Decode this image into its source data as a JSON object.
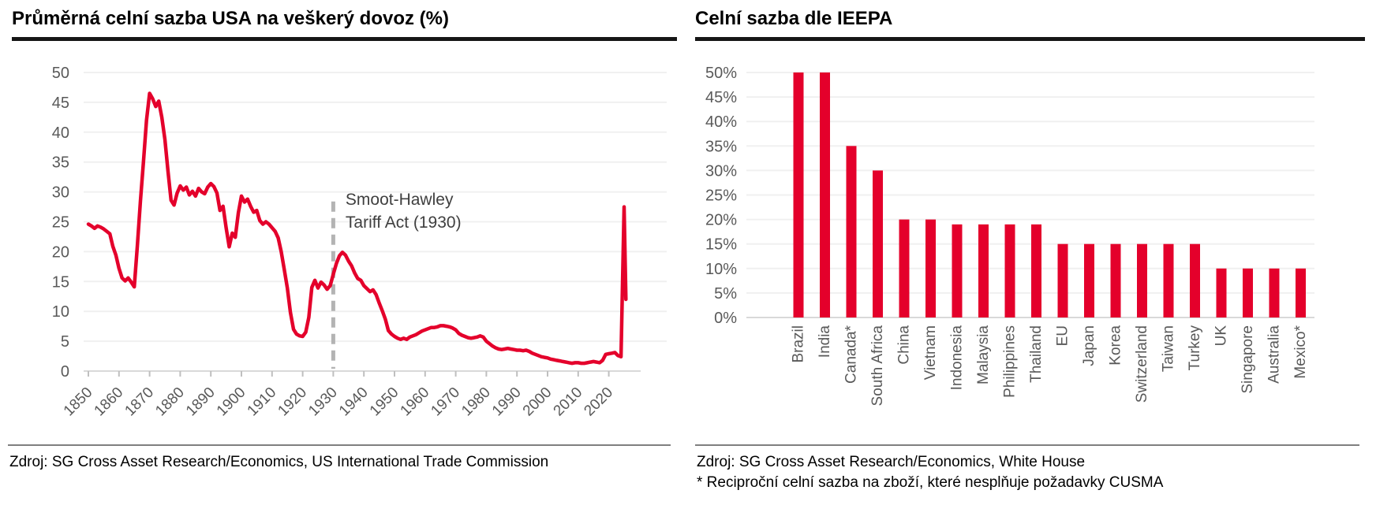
{
  "colors": {
    "accent_red": "#e4002b",
    "axis_text": "#595959",
    "gridline": "#f0f0f0",
    "axis_line": "#d9d9d9",
    "tick": "#bfbfbf",
    "dashed_line": "#b3b3b3",
    "annotation_text": "#3f3f3f",
    "title_rule": "#161616",
    "source_rule": "#7f7f7f"
  },
  "left_panel": {
    "title": "Průměrná celní sazba USA na veškerý dovoz (%)",
    "source": "Zdroj: SG Cross Asset Research/Economics, US International Trade Commission"
  },
  "right_panel": {
    "title": "Celní sazba dle IEEPA",
    "source": "Zdroj: SG Cross Asset Research/Economics, White House",
    "footnote": "* Reciproční celní sazba na zboží, které nesplňuje požadavky CUSMA"
  },
  "chart_data": [
    {
      "type": "line",
      "title": "Průměrná celní sazba USA na veškerý dovoz (%)",
      "xlabel": "",
      "ylabel": "",
      "xlim": [
        1848,
        2027
      ],
      "ylim": [
        0,
        50
      ],
      "yticks": [
        0,
        5,
        10,
        15,
        20,
        25,
        30,
        35,
        40,
        45,
        50
      ],
      "xticks": [
        1850,
        1860,
        1870,
        1880,
        1890,
        1900,
        1910,
        1920,
        1930,
        1940,
        1950,
        1960,
        1970,
        1980,
        1990,
        2000,
        2010,
        2020
      ],
      "grid": true,
      "legend": "none",
      "annotation": {
        "lines": [
          "Smoot-Hawley",
          "Tariff Act (1930)"
        ],
        "at_year": 1934,
        "at_value": 29
      },
      "vline": {
        "at_year": 1930,
        "style": "dashed",
        "value_from": 0.4,
        "value_to": 28.4
      },
      "series": [
        {
          "name": "Průměrná celní sazba USA (%)",
          "points": [
            [
              1850,
              24.6
            ],
            [
              1851,
              24.3
            ],
            [
              1852,
              23.9
            ],
            [
              1853,
              24.3
            ],
            [
              1854,
              24.1
            ],
            [
              1855,
              23.8
            ],
            [
              1856,
              23.4
            ],
            [
              1857,
              23.0
            ],
            [
              1858,
              20.9
            ],
            [
              1859,
              19.4
            ],
            [
              1860,
              17.2
            ],
            [
              1861,
              15.6
            ],
            [
              1862,
              15.1
            ],
            [
              1863,
              15.6
            ],
            [
              1864,
              14.9
            ],
            [
              1865,
              14.1
            ],
            [
              1866,
              21.0
            ],
            [
              1867,
              28.5
            ],
            [
              1868,
              35.0
            ],
            [
              1869,
              42.0
            ],
            [
              1870,
              46.5
            ],
            [
              1871,
              45.6
            ],
            [
              1872,
              44.3
            ],
            [
              1873,
              45.2
            ],
            [
              1874,
              42.5
            ],
            [
              1875,
              38.8
            ],
            [
              1876,
              33.5
            ],
            [
              1877,
              28.6
            ],
            [
              1878,
              27.8
            ],
            [
              1879,
              29.8
            ],
            [
              1880,
              31.0
            ],
            [
              1881,
              30.3
            ],
            [
              1882,
              30.8
            ],
            [
              1883,
              29.5
            ],
            [
              1884,
              30.1
            ],
            [
              1885,
              29.3
            ],
            [
              1886,
              30.6
            ],
            [
              1887,
              30.0
            ],
            [
              1888,
              29.7
            ],
            [
              1889,
              30.8
            ],
            [
              1890,
              31.4
            ],
            [
              1891,
              30.9
            ],
            [
              1892,
              29.8
            ],
            [
              1893,
              26.9
            ],
            [
              1894,
              27.6
            ],
            [
              1895,
              24.0
            ],
            [
              1896,
              20.8
            ],
            [
              1897,
              23.1
            ],
            [
              1898,
              22.4
            ],
            [
              1899,
              26.5
            ],
            [
              1900,
              29.3
            ],
            [
              1901,
              28.3
            ],
            [
              1902,
              28.8
            ],
            [
              1903,
              27.6
            ],
            [
              1904,
              26.6
            ],
            [
              1905,
              26.9
            ],
            [
              1906,
              25.2
            ],
            [
              1907,
              24.6
            ],
            [
              1908,
              25.0
            ],
            [
              1909,
              24.6
            ],
            [
              1910,
              24.0
            ],
            [
              1911,
              23.4
            ],
            [
              1912,
              22.3
            ],
            [
              1913,
              20.0
            ],
            [
              1914,
              17.0
            ],
            [
              1915,
              13.9
            ],
            [
              1916,
              9.8
            ],
            [
              1917,
              7.0
            ],
            [
              1918,
              6.2
            ],
            [
              1919,
              5.9
            ],
            [
              1920,
              5.8
            ],
            [
              1921,
              6.5
            ],
            [
              1922,
              9.0
            ],
            [
              1923,
              14.0
            ],
            [
              1924,
              15.2
            ],
            [
              1925,
              13.9
            ],
            [
              1926,
              14.9
            ],
            [
              1927,
              14.4
            ],
            [
              1928,
              13.7
            ],
            [
              1929,
              14.3
            ],
            [
              1930,
              16.2
            ],
            [
              1931,
              18.0
            ],
            [
              1932,
              19.3
            ],
            [
              1933,
              19.9
            ],
            [
              1934,
              19.4
            ],
            [
              1935,
              18.4
            ],
            [
              1936,
              17.6
            ],
            [
              1937,
              16.4
            ],
            [
              1938,
              15.5
            ],
            [
              1939,
              15.2
            ],
            [
              1940,
              14.3
            ],
            [
              1941,
              13.8
            ],
            [
              1942,
              13.3
            ],
            [
              1943,
              13.6
            ],
            [
              1944,
              12.8
            ],
            [
              1945,
              11.4
            ],
            [
              1946,
              10.1
            ],
            [
              1947,
              8.7
            ],
            [
              1948,
              6.8
            ],
            [
              1949,
              6.2
            ],
            [
              1950,
              5.8
            ],
            [
              1951,
              5.5
            ],
            [
              1952,
              5.3
            ],
            [
              1953,
              5.5
            ],
            [
              1954,
              5.3
            ],
            [
              1955,
              5.7
            ],
            [
              1956,
              5.9
            ],
            [
              1957,
              6.1
            ],
            [
              1958,
              6.4
            ],
            [
              1959,
              6.7
            ],
            [
              1960,
              6.9
            ],
            [
              1961,
              7.1
            ],
            [
              1962,
              7.3
            ],
            [
              1963,
              7.3
            ],
            [
              1964,
              7.4
            ],
            [
              1965,
              7.6
            ],
            [
              1966,
              7.6
            ],
            [
              1967,
              7.5
            ],
            [
              1968,
              7.4
            ],
            [
              1969,
              7.2
            ],
            [
              1970,
              6.9
            ],
            [
              1971,
              6.3
            ],
            [
              1972,
              6.0
            ],
            [
              1973,
              5.8
            ],
            [
              1974,
              5.6
            ],
            [
              1975,
              5.5
            ],
            [
              1976,
              5.6
            ],
            [
              1977,
              5.7
            ],
            [
              1978,
              5.9
            ],
            [
              1979,
              5.7
            ],
            [
              1980,
              5.0
            ],
            [
              1981,
              4.6
            ],
            [
              1982,
              4.2
            ],
            [
              1983,
              3.9
            ],
            [
              1984,
              3.7
            ],
            [
              1985,
              3.6
            ],
            [
              1986,
              3.7
            ],
            [
              1987,
              3.8
            ],
            [
              1988,
              3.7
            ],
            [
              1989,
              3.6
            ],
            [
              1990,
              3.5
            ],
            [
              1991,
              3.5
            ],
            [
              1992,
              3.4
            ],
            [
              1993,
              3.5
            ],
            [
              1994,
              3.3
            ],
            [
              1995,
              3.0
            ],
            [
              1996,
              2.8
            ],
            [
              1997,
              2.6
            ],
            [
              1998,
              2.4
            ],
            [
              1999,
              2.3
            ],
            [
              2000,
              2.2
            ],
            [
              2001,
              2.0
            ],
            [
              2002,
              1.9
            ],
            [
              2003,
              1.8
            ],
            [
              2004,
              1.7
            ],
            [
              2005,
              1.6
            ],
            [
              2006,
              1.5
            ],
            [
              2007,
              1.4
            ],
            [
              2008,
              1.3
            ],
            [
              2009,
              1.4
            ],
            [
              2010,
              1.4
            ],
            [
              2011,
              1.3
            ],
            [
              2012,
              1.3
            ],
            [
              2013,
              1.4
            ],
            [
              2014,
              1.5
            ],
            [
              2015,
              1.6
            ],
            [
              2016,
              1.5
            ],
            [
              2017,
              1.4
            ],
            [
              2018,
              1.8
            ],
            [
              2019,
              2.8
            ],
            [
              2020,
              2.9
            ],
            [
              2021,
              3.0
            ],
            [
              2022,
              3.1
            ],
            [
              2023,
              2.6
            ],
            [
              2024,
              2.4
            ],
            [
              2025,
              27.5
            ],
            [
              2025.6,
              12.0
            ]
          ]
        }
      ]
    },
    {
      "type": "bar",
      "title": "Celní sazba dle IEEPA",
      "xlabel": "",
      "ylabel": "",
      "ylim": [
        0,
        50
      ],
      "ytick_labels": [
        "0%",
        "5%",
        "10%",
        "15%",
        "20%",
        "25%",
        "30%",
        "35%",
        "40%",
        "45%",
        "50%"
      ],
      "yticks": [
        0,
        5,
        10,
        15,
        20,
        25,
        30,
        35,
        40,
        45,
        50
      ],
      "grid": true,
      "legend": "none",
      "categories": [
        "Brazil",
        "India",
        "Canada*",
        "South Africa",
        "China",
        "Vietnam",
        "Indonesia",
        "Malaysia",
        "Philippines",
        "Thailand",
        "EU",
        "Japan",
        "Korea",
        "Switzerland",
        "Taiwan",
        "Turkey",
        "UK",
        "Singapore",
        "Australia",
        "Mexico*"
      ],
      "values": [
        50,
        50,
        35,
        30,
        20,
        20,
        19,
        19,
        19,
        19,
        15,
        15,
        15,
        15,
        15,
        15,
        10,
        10,
        10,
        10
      ]
    }
  ]
}
